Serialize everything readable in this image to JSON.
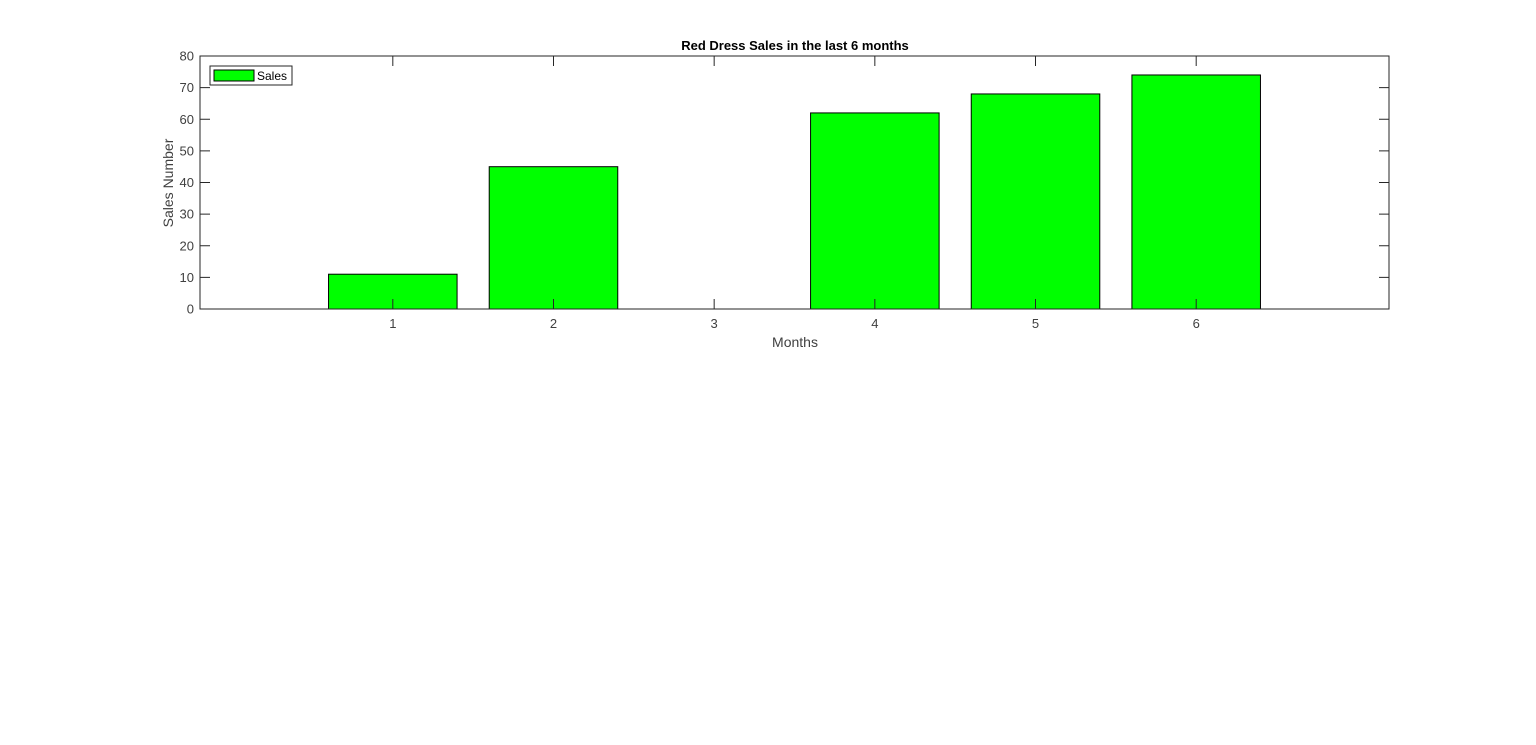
{
  "chart_data": {
    "type": "bar",
    "title": "Red Dress Sales  in the last 6 months",
    "xlabel": "Months",
    "ylabel": "Sales Number",
    "categories": [
      "1",
      "2",
      "3",
      "4",
      "5",
      "6"
    ],
    "series": [
      {
        "name": "Sales",
        "values": [
          11,
          45,
          0,
          62,
          68,
          74
        ],
        "color": "#00ff00"
      }
    ],
    "xlim": [
      -0.2,
      7.2
    ],
    "ylim": [
      0,
      80
    ],
    "yticks": [
      "0",
      "10",
      "20",
      "30",
      "40",
      "50",
      "60",
      "70",
      "80"
    ],
    "grid": false,
    "legend_position": "top-left",
    "bar_edge_color": "#000000",
    "axis_color": "#262626"
  }
}
